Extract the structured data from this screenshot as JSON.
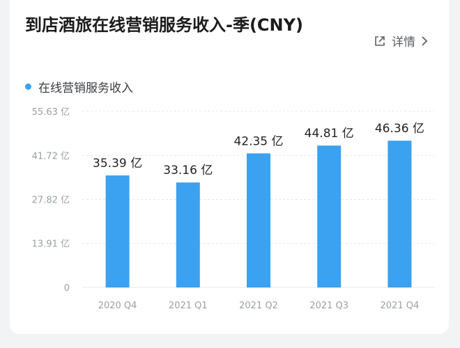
{
  "header": {
    "title": "到店酒旅在线营销服务收入-季(CNY)",
    "detail_label": "详情"
  },
  "colors": {
    "bar": "#3ba1f1",
    "grid": "#e6e8eb"
  },
  "chart_data": {
    "type": "bar",
    "title": "到店酒旅在线营销服务收入-季(CNY)",
    "categories": [
      "2020 Q4",
      "2021 Q1",
      "2021 Q2",
      "2021 Q3",
      "2021 Q4"
    ],
    "series": [
      {
        "name": "在线营销服务收入",
        "values": [
          35.39,
          33.16,
          42.35,
          44.81,
          46.36
        ]
      }
    ],
    "data_labels": [
      "35.39 亿",
      "33.16 亿",
      "42.35 亿",
      "44.81 亿",
      "46.36 亿"
    ],
    "yticks": [
      0,
      13.91,
      27.82,
      41.72,
      55.63
    ],
    "ytick_labels": [
      "0",
      "13.91 亿",
      "27.82 亿",
      "41.72 亿",
      "55.63 亿"
    ],
    "ylim": [
      0,
      55.63
    ],
    "grid": true,
    "legend_position": "top-left"
  }
}
